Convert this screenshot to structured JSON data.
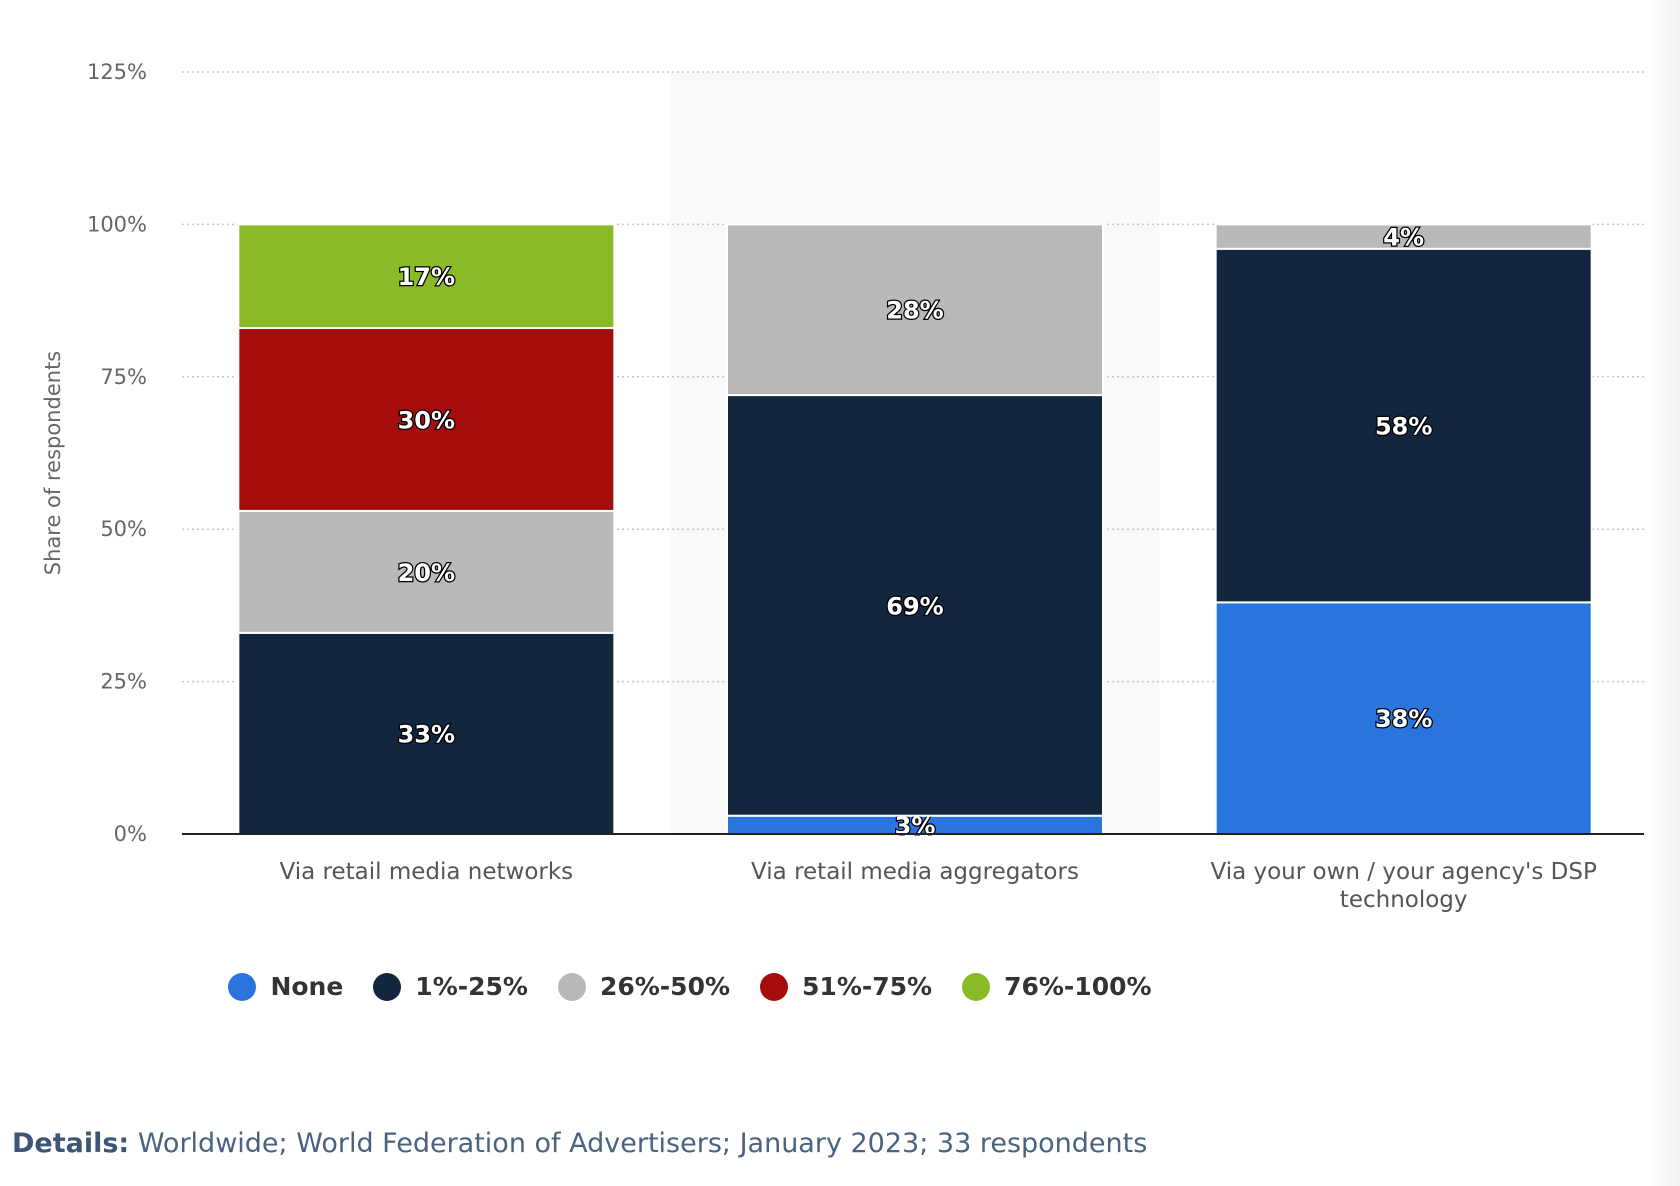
{
  "chart_data": {
    "type": "bar",
    "stacked": true,
    "categories": [
      "Via retail media networks",
      "Via retail media aggregators",
      "Via your own / your agency's DSP technology"
    ],
    "series": [
      {
        "name": "None",
        "color": "#2a75dd",
        "values": [
          0,
          3,
          38
        ]
      },
      {
        "name": "1%-25%",
        "color": "#12263d",
        "values": [
          33,
          69,
          58
        ]
      },
      {
        "name": "26%-50%",
        "color": "#b9b9b9",
        "values": [
          20,
          28,
          4
        ]
      },
      {
        "name": "51%-75%",
        "color": "#a50c0c",
        "values": [
          30,
          0,
          0
        ]
      },
      {
        "name": "76%-100%",
        "color": "#8aba25",
        "values": [
          17,
          0,
          0
        ]
      }
    ],
    "ylabel": "Share of respondents",
    "ylim": [
      0,
      125
    ],
    "yticks": [
      "0%",
      "25%",
      "50%",
      "75%",
      "100%",
      "125%"
    ],
    "grid": true,
    "legend_position": "bottom",
    "highlighted_category": "Via retail media aggregators"
  },
  "details": {
    "label": "Details:",
    "text": " Worldwide; World Federation of Advertisers; January 2023; 33 respondents"
  }
}
